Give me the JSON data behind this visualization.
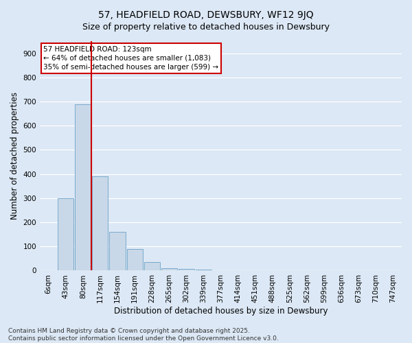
{
  "title": "57, HEADFIELD ROAD, DEWSBURY, WF12 9JQ",
  "subtitle": "Size of property relative to detached houses in Dewsbury",
  "xlabel": "Distribution of detached houses by size in Dewsbury",
  "ylabel": "Number of detached properties",
  "bin_labels": [
    "6sqm",
    "43sqm",
    "80sqm",
    "117sqm",
    "154sqm",
    "191sqm",
    "228sqm",
    "265sqm",
    "302sqm",
    "339sqm",
    "377sqm",
    "414sqm",
    "451sqm",
    "488sqm",
    "525sqm",
    "562sqm",
    "599sqm",
    "636sqm",
    "673sqm",
    "710sqm",
    "747sqm"
  ],
  "bar_heights": [
    2,
    300,
    690,
    390,
    160,
    90,
    35,
    10,
    8,
    4,
    2,
    0,
    0,
    0,
    0,
    0,
    0,
    0,
    0,
    0,
    0
  ],
  "bar_color": "#c8d8e8",
  "bar_edge_color": "#7aaacc",
  "vline_color": "#cc0000",
  "annotation_text": "57 HEADFIELD ROAD: 123sqm\n← 64% of detached houses are smaller (1,083)\n35% of semi-detached houses are larger (599) →",
  "annotation_box_edgecolor": "#cc0000",
  "annotation_bg_color": "#ffffff",
  "ylim": [
    0,
    950
  ],
  "yticks": [
    0,
    100,
    200,
    300,
    400,
    500,
    600,
    700,
    800,
    900
  ],
  "footer": "Contains HM Land Registry data © Crown copyright and database right 2025.\nContains public sector information licensed under the Open Government Licence v3.0.",
  "background_color": "#dce8f5",
  "plot_background_color": "#dce8f5",
  "grid_color": "#ffffff",
  "title_fontsize": 10,
  "subtitle_fontsize": 9,
  "axis_label_fontsize": 8.5,
  "tick_fontsize": 7.5,
  "annotation_fontsize": 7.5,
  "footer_fontsize": 6.5
}
